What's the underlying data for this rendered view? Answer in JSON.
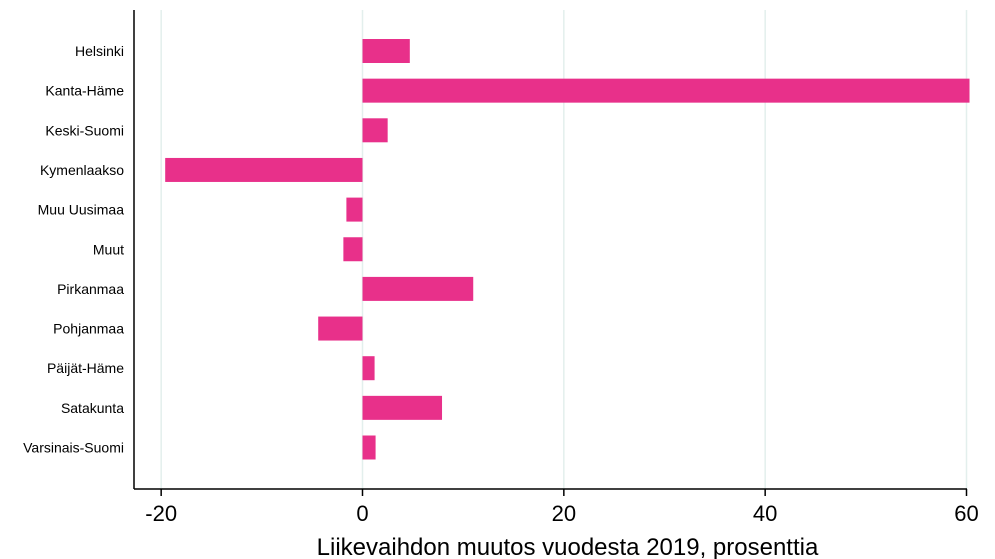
{
  "chart_data": {
    "type": "bar",
    "orientation": "horizontal",
    "title": "",
    "xlabel": "Liikevaihdon muutos vuodesta 2019, prosenttia",
    "ylabel": "",
    "xlim": [
      -22.5,
      62.5
    ],
    "xticks": [
      -20,
      0,
      20,
      40,
      60
    ],
    "xtick_labels": [
      "-20",
      "0",
      "20",
      "40",
      "60"
    ],
    "grid": "vertical",
    "bar_color": "#e8308a",
    "grid_color": "#e3efed",
    "categories": [
      "Helsinki",
      "Kanta-Häme",
      "Keski-Suomi",
      "Kymenlaakso",
      "Muu Uusimaa",
      "Muut",
      "Pirkanmaa",
      "Pohjanmaa",
      "Päijät-Häme",
      "Satakunta",
      "Varsinais-Suomi"
    ],
    "values": [
      4.7,
      60.3,
      2.5,
      -19.6,
      -1.6,
      -1.9,
      11.0,
      -4.4,
      1.2,
      7.9,
      1.3
    ]
  }
}
